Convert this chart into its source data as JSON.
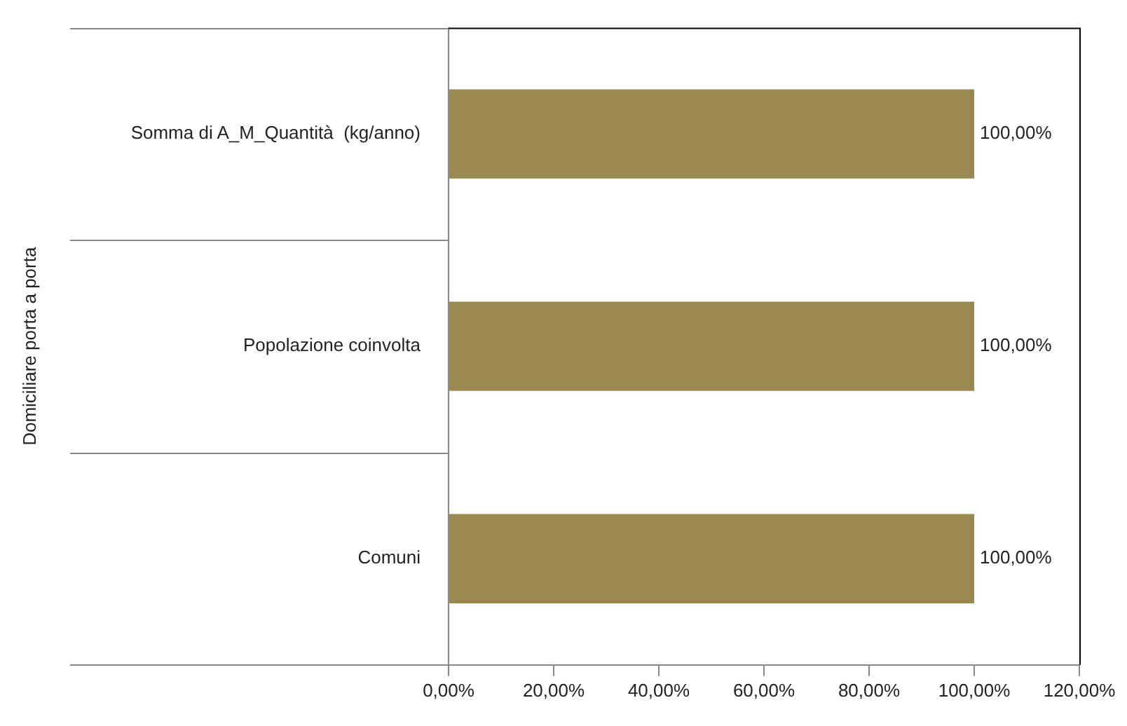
{
  "chart_data": {
    "type": "bar",
    "orientation": "horizontal",
    "ylabel": "Domiciliare porta a porta",
    "categories": [
      "Somma di A_M_Quantità  (kg/anno)",
      "Popolazione coinvolta",
      "Comuni"
    ],
    "values": [
      100,
      100,
      100
    ],
    "color": "#9a8850",
    "value_labels": [
      "100,00%",
      "100,00%",
      "100,00%"
    ],
    "xlim": [
      0,
      120
    ],
    "xticks": [
      {
        "value": 0,
        "label": "0,00%"
      },
      {
        "value": 20,
        "label": "20,00%"
      },
      {
        "value": 40,
        "label": "40,00%"
      },
      {
        "value": 60,
        "label": "60,00%"
      },
      {
        "value": 80,
        "label": "80,00%"
      },
      {
        "value": 100,
        "label": "100,00%"
      },
      {
        "value": 120,
        "label": "120,00%"
      }
    ],
    "grid": false,
    "legend": false
  }
}
